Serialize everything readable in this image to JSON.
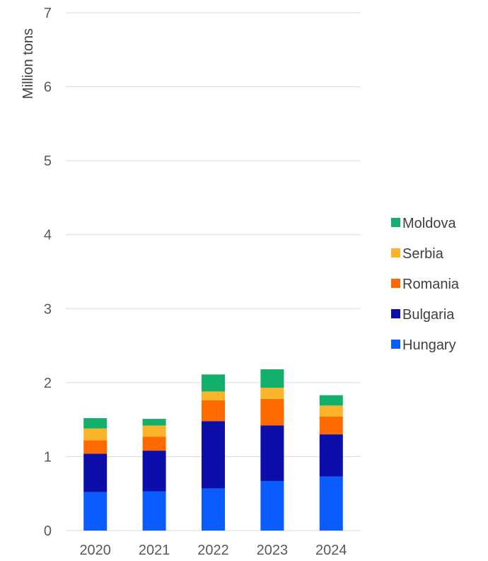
{
  "chart_data": {
    "type": "bar",
    "stacked": true,
    "categories": [
      "2020",
      "2021",
      "2022",
      "2023",
      "2024"
    ],
    "series": [
      {
        "name": "Hungary",
        "color": "#0a5cff",
        "values": [
          0.52,
          0.53,
          0.57,
          0.67,
          0.73
        ]
      },
      {
        "name": "Bulgaria",
        "color": "#0b0ea8",
        "values": [
          0.52,
          0.55,
          0.91,
          0.75,
          0.57
        ]
      },
      {
        "name": "Romania",
        "color": "#ff6a00",
        "values": [
          0.18,
          0.19,
          0.28,
          0.36,
          0.24
        ]
      },
      {
        "name": "Serbia",
        "color": "#fbb42a",
        "values": [
          0.16,
          0.15,
          0.12,
          0.15,
          0.15
        ]
      },
      {
        "name": "Moldova",
        "color": "#12b06a",
        "values": [
          0.14,
          0.09,
          0.23,
          0.25,
          0.14
        ]
      }
    ],
    "title": "",
    "xlabel": "",
    "ylabel": "Million tons",
    "ylim": [
      0,
      7
    ],
    "yticks": [
      "0",
      "1",
      "2",
      "3",
      "4",
      "5",
      "6",
      "7"
    ],
    "grid": true,
    "legend_position": "right",
    "legend_order": [
      "Moldova",
      "Serbia",
      "Romania",
      "Bulgaria",
      "Hungary"
    ]
  }
}
